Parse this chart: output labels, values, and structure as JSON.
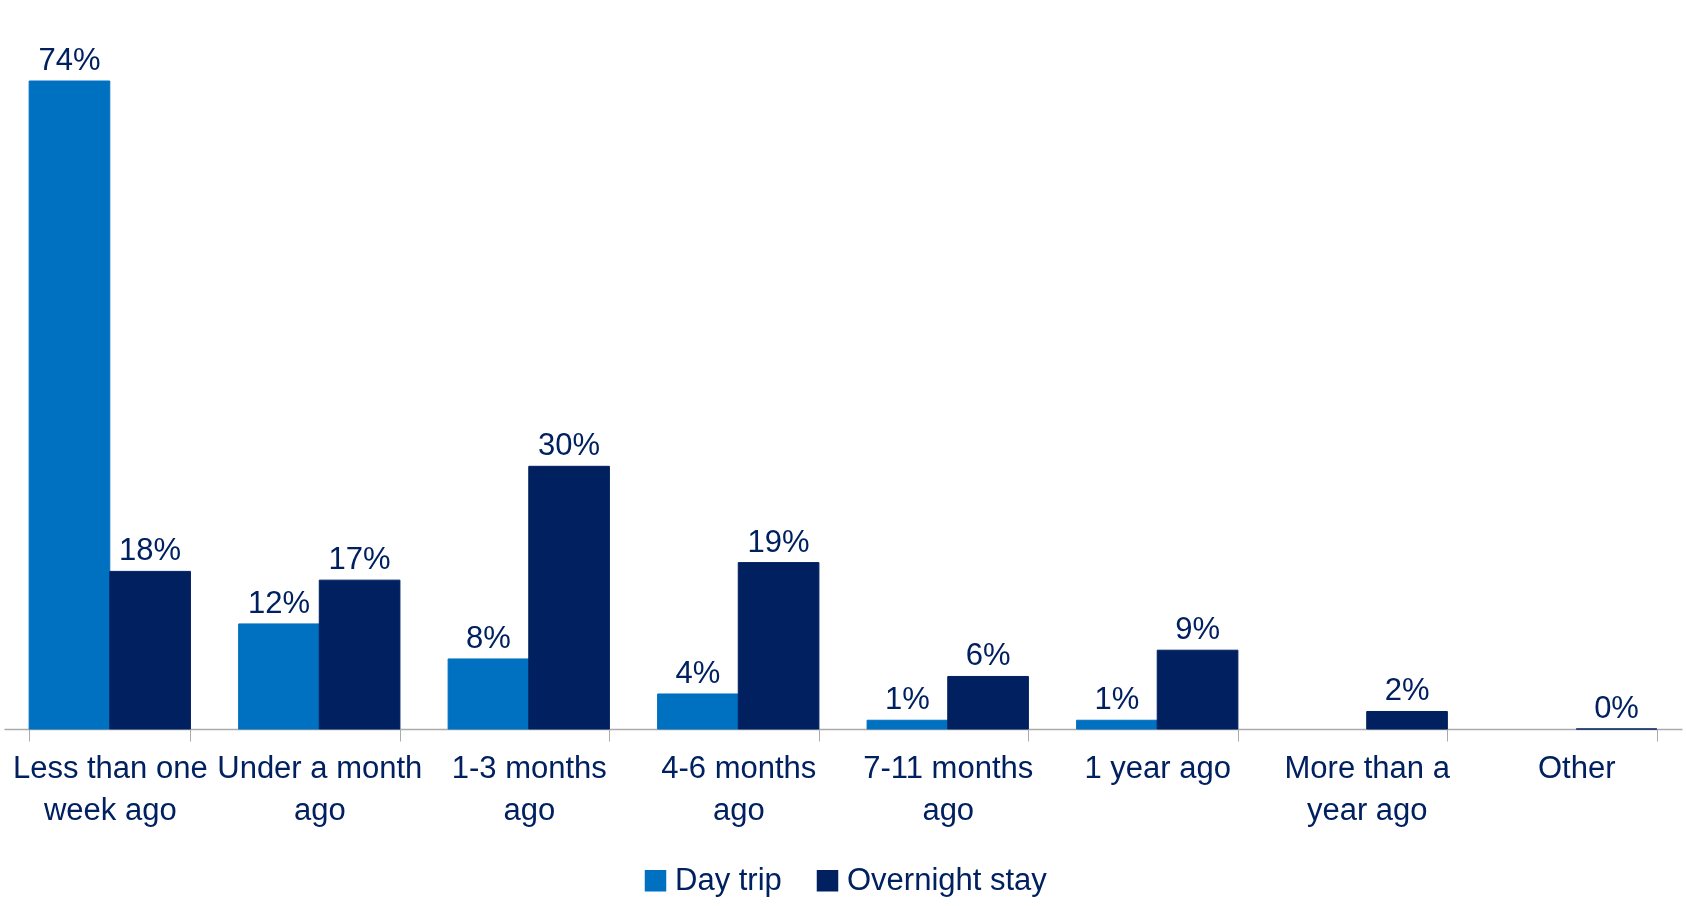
{
  "chart_data": {
    "type": "bar",
    "categories": [
      "Less than one week ago",
      "Under a month ago",
      "1-3 months ago",
      "4-6 months ago",
      "7-11 months ago",
      "1 year ago",
      "More than a year ago",
      "Other"
    ],
    "series": [
      {
        "name": "Day trip",
        "color": "#0070c0",
        "values": [
          74,
          12,
          8,
          4,
          1,
          1,
          null,
          null
        ],
        "value_labels": [
          "74%",
          "12%",
          "8%",
          "4%",
          "1%",
          "1%",
          null,
          null
        ]
      },
      {
        "name": "Overnight stay",
        "color": "#002060",
        "values": [
          18,
          17,
          30,
          19,
          6,
          9,
          2,
          0
        ],
        "value_labels": [
          "18%",
          "17%",
          "30%",
          "19%",
          "6%",
          "9%",
          "2%",
          "0%"
        ]
      }
    ],
    "legend": "bottom",
    "grid": false
  }
}
